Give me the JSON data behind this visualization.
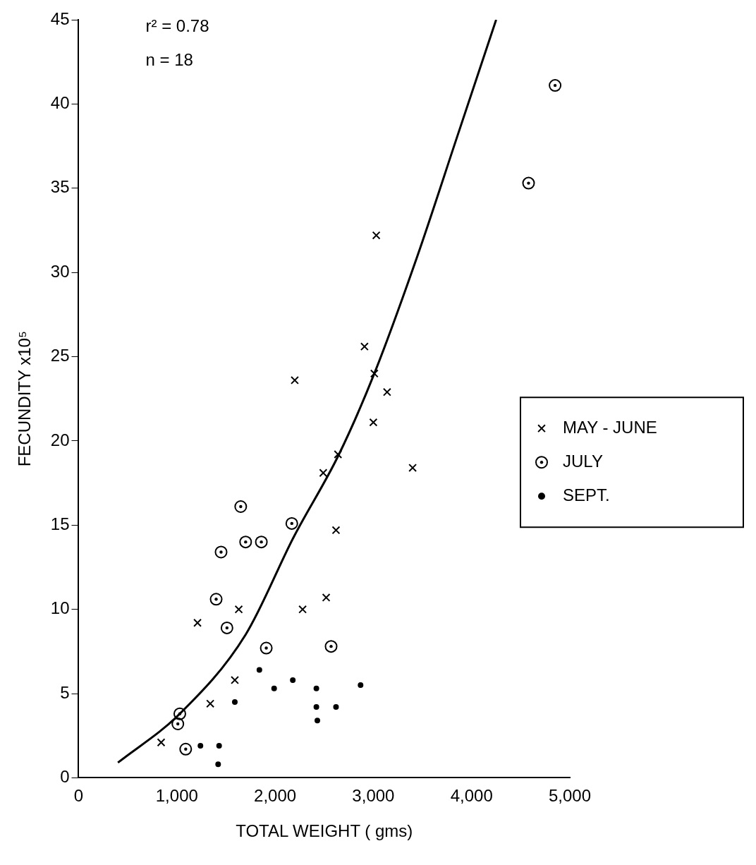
{
  "chart_data": {
    "type": "scatter",
    "xlabel": "TOTAL WEIGHT ( gms)",
    "ylabel": "FECUNDITY x10⁵",
    "annotations": [
      "r² = 0.78",
      "n = 18"
    ],
    "xlim": [
      0,
      5000
    ],
    "xticks": [
      0,
      {
        "value": 1000,
        "label": "1,000"
      },
      {
        "value": 2000,
        "label": "2,000"
      },
      {
        "value": 3000,
        "label": "3,000"
      },
      {
        "value": 4000,
        "label": "4,000"
      },
      {
        "value": 5000,
        "label": "5,000"
      }
    ],
    "ylim": [
      0,
      45
    ],
    "yticks": [
      0,
      5,
      10,
      15,
      20,
      25,
      30,
      35,
      40,
      45
    ],
    "grid": false,
    "legend": "right",
    "series": [
      {
        "name": "MAY - JUNE",
        "color": "#000000",
        "marker": "cross",
        "x": [
          840,
          1340,
          1590,
          1210,
          1630,
          2280,
          2520,
          2620,
          2490,
          2640,
          3400,
          3000,
          3010,
          3140,
          2910,
          2200,
          3030
        ],
        "values": [
          2.1,
          4.4,
          5.8,
          9.2,
          10.0,
          10.0,
          10.7,
          14.7,
          18.1,
          19.2,
          18.4,
          21.1,
          24.0,
          22.9,
          25.6,
          23.6,
          32.2
        ]
      },
      {
        "name": "JULY",
        "color": "#000000",
        "marker": "circle",
        "x": [
          1030,
          1010,
          1090,
          1400,
          1510,
          1450,
          1650,
          1700,
          1860,
          2170,
          1910,
          2570,
          4580,
          4850
        ],
        "values": [
          3.8,
          3.2,
          1.7,
          10.6,
          8.9,
          13.4,
          16.1,
          14.0,
          14.0,
          15.1,
          7.7,
          7.8,
          35.3,
          41.1
        ]
      },
      {
        "name": "SEPT.",
        "color": "#000000",
        "marker": "dot",
        "x": [
          1240,
          1430,
          1420,
          1590,
          1840,
          1990,
          2180,
          2420,
          2420,
          2430,
          2620,
          2870
        ],
        "values": [
          1.9,
          1.9,
          0.8,
          4.5,
          6.4,
          5.3,
          5.8,
          5.3,
          4.2,
          3.4,
          4.2,
          5.5
        ]
      },
      {
        "type": "line",
        "color": "#000000",
        "marker": "none",
        "x": [
          400,
          1030,
          1700,
          2190,
          2650,
          3010,
          3450,
          3850,
          4250
        ],
        "values": [
          0.9,
          3.8,
          8.5,
          14.3,
          19.2,
          24.0,
          31.0,
          38.0,
          45.0
        ]
      }
    ]
  }
}
